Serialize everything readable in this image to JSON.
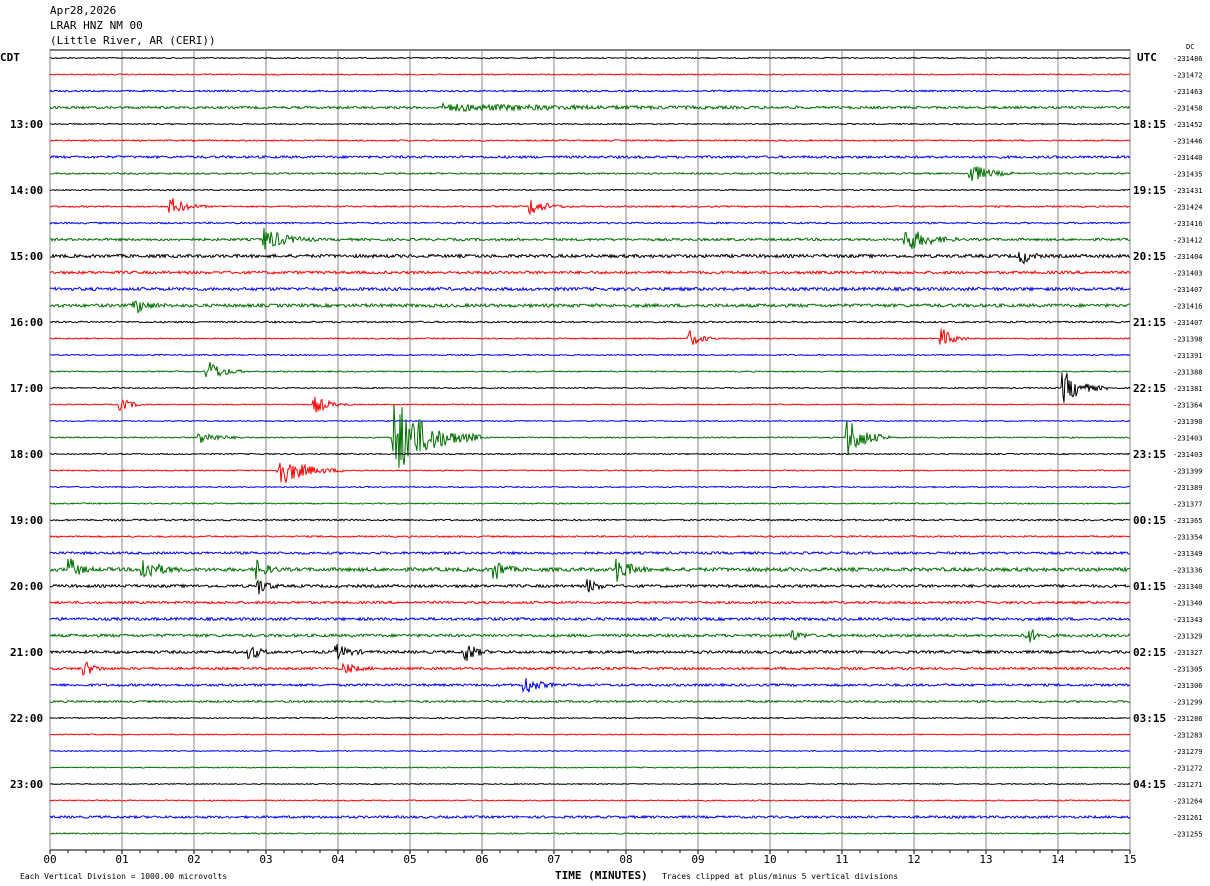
{
  "header": {
    "date": "Apr28,2026",
    "station": "LRAR HNZ NM 00",
    "location": "(Little River, AR (CERI))"
  },
  "chart_data": {
    "type": "line",
    "title": "",
    "left_tz": "CDT",
    "right_tz": "UTC",
    "dc_label": "DC",
    "xlabel": "TIME (MINUTES)",
    "xlim": [
      0,
      15
    ],
    "x_ticks": [
      "00",
      "01",
      "02",
      "03",
      "04",
      "05",
      "06",
      "07",
      "08",
      "09",
      "10",
      "11",
      "12",
      "13",
      "14",
      "15"
    ],
    "grid": true,
    "trace_colors": [
      "#000000",
      "#ff0000",
      "#0000ff",
      "#007000"
    ],
    "left_labels": [
      {
        "trace": 4,
        "text": "13:00"
      },
      {
        "trace": 8,
        "text": "14:00"
      },
      {
        "trace": 12,
        "text": "15:00"
      },
      {
        "trace": 16,
        "text": "16:00"
      },
      {
        "trace": 20,
        "text": "17:00"
      },
      {
        "trace": 24,
        "text": "18:00"
      },
      {
        "trace": 28,
        "text": "19:00"
      },
      {
        "trace": 32,
        "text": "20:00"
      },
      {
        "trace": 36,
        "text": "21:00"
      },
      {
        "trace": 40,
        "text": "22:00"
      },
      {
        "trace": 44,
        "text": "23:00"
      }
    ],
    "right_labels": [
      {
        "trace": 4,
        "text": "18:15"
      },
      {
        "trace": 8,
        "text": "19:15"
      },
      {
        "trace": 12,
        "text": "20:15"
      },
      {
        "trace": 16,
        "text": "21:15"
      },
      {
        "trace": 20,
        "text": "22:15"
      },
      {
        "trace": 24,
        "text": "23:15"
      },
      {
        "trace": 28,
        "text": "00:15"
      },
      {
        "trace": 32,
        "text": "01:15"
      },
      {
        "trace": 36,
        "text": "02:15"
      },
      {
        "trace": 40,
        "text": "03:15"
      },
      {
        "trace": 44,
        "text": "04:15"
      }
    ],
    "dc_values": [
      "-231486",
      "-231472",
      "-231463",
      "-231458",
      "-231452",
      "-231446",
      "-231440",
      "-231435",
      "-231431",
      "-231424",
      "-231416",
      "-231412",
      "-231404",
      "-231403",
      "-231407",
      "-231416",
      "-231407",
      "-231398",
      "-231391",
      "-231388",
      "-231381",
      "-231364",
      "-231390",
      "-231403",
      "-231403",
      "-231399",
      "-231389",
      "-231377",
      "-231365",
      "-231354",
      "-231349",
      "-231336",
      "-231340",
      "-231340",
      "-231343",
      "-231329",
      "-231327",
      "-231305",
      "-231306",
      "-231299",
      "-231286",
      "-231283",
      "-231279",
      "-231272",
      "-231271",
      "-231264",
      "-231261",
      "-231255"
    ],
    "noise_levels": [
      0.6,
      0.6,
      0.8,
      1.2,
      0.6,
      0.7,
      1.2,
      0.8,
      0.6,
      0.8,
      0.8,
      1.2,
      1.6,
      1.4,
      1.6,
      1.6,
      0.8,
      0.6,
      0.6,
      0.6,
      0.6,
      0.5,
      0.5,
      0.6,
      0.6,
      0.6,
      0.6,
      0.6,
      0.8,
      0.8,
      1.2,
      1.8,
      1.4,
      1.2,
      1.4,
      1.4,
      1.4,
      1.2,
      1.2,
      1.0,
      0.6,
      0.5,
      0.5,
      0.5,
      0.5,
      0.6,
      1.2,
      0.6
    ],
    "events": [
      {
        "trace": 3,
        "minute": 5.5,
        "amplitude": 3,
        "duration": 5
      },
      {
        "trace": 7,
        "minute": 12.8,
        "amplitude": 10,
        "duration": 0.6
      },
      {
        "trace": 9,
        "minute": 1.7,
        "amplitude": 8,
        "duration": 0.5
      },
      {
        "trace": 9,
        "minute": 6.7,
        "amplitude": 8,
        "duration": 0.5
      },
      {
        "trace": 11,
        "minute": 3.0,
        "amplitude": 11,
        "duration": 0.7
      },
      {
        "trace": 11,
        "minute": 11.9,
        "amplitude": 13,
        "duration": 0.7
      },
      {
        "trace": 12,
        "minute": 13.5,
        "amplitude": 8,
        "duration": 0.3
      },
      {
        "trace": 15,
        "minute": 1.2,
        "amplitude": 7,
        "duration": 0.4
      },
      {
        "trace": 17,
        "minute": 8.9,
        "amplitude": 8,
        "duration": 0.4
      },
      {
        "trace": 17,
        "minute": 12.4,
        "amplitude": 10,
        "duration": 0.4
      },
      {
        "trace": 19,
        "minute": 2.2,
        "amplitude": 12,
        "duration": 0.5
      },
      {
        "trace": 20,
        "minute": 14.1,
        "amplitude": 16,
        "duration": 0.6
      },
      {
        "trace": 21,
        "minute": 1.0,
        "amplitude": 6,
        "duration": 0.4
      },
      {
        "trace": 21,
        "minute": 3.7,
        "amplitude": 8,
        "duration": 0.5
      },
      {
        "trace": 23,
        "minute": 2.1,
        "amplitude": 6,
        "duration": 0.6
      },
      {
        "trace": 23,
        "minute": 4.8,
        "amplitude": 40,
        "duration": 1.2
      },
      {
        "trace": 23,
        "minute": 11.1,
        "amplitude": 20,
        "duration": 0.6
      },
      {
        "trace": 25,
        "minute": 3.2,
        "amplitude": 15,
        "duration": 0.9
      },
      {
        "trace": 31,
        "minute": 0.3,
        "amplitude": 10,
        "duration": 0.3
      },
      {
        "trace": 31,
        "minute": 1.3,
        "amplitude": 12,
        "duration": 0.5
      },
      {
        "trace": 31,
        "minute": 2.9,
        "amplitude": 9,
        "duration": 0.3
      },
      {
        "trace": 31,
        "minute": 6.2,
        "amplitude": 10,
        "duration": 0.3
      },
      {
        "trace": 31,
        "minute": 7.9,
        "amplitude": 12,
        "duration": 0.4
      },
      {
        "trace": 32,
        "minute": 2.9,
        "amplitude": 8,
        "duration": 0.3
      },
      {
        "trace": 32,
        "minute": 7.5,
        "amplitude": 6,
        "duration": 0.3
      },
      {
        "trace": 35,
        "minute": 10.3,
        "amplitude": 6,
        "duration": 0.3
      },
      {
        "trace": 35,
        "minute": 13.6,
        "amplitude": 7,
        "duration": 0.3
      },
      {
        "trace": 36,
        "minute": 2.8,
        "amplitude": 7,
        "duration": 0.3
      },
      {
        "trace": 36,
        "minute": 4.0,
        "amplitude": 7,
        "duration": 0.4
      },
      {
        "trace": 36,
        "minute": 5.8,
        "amplitude": 10,
        "duration": 0.3
      },
      {
        "trace": 37,
        "minute": 0.5,
        "amplitude": 7,
        "duration": 0.3
      },
      {
        "trace": 37,
        "minute": 4.1,
        "amplitude": 5,
        "duration": 0.4
      },
      {
        "trace": 38,
        "minute": 6.6,
        "amplitude": 10,
        "duration": 0.4
      }
    ]
  },
  "footer": {
    "scale_note": "Each Vertical Division = 1000.00 microvolts",
    "clip_note": "Traces clipped at plus/minus 5 vertical divisions"
  }
}
